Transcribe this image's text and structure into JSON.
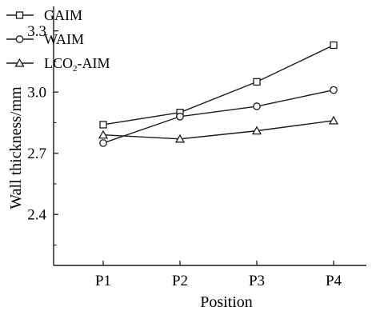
{
  "chart_data": {
    "type": "line",
    "title": "",
    "xlabel": "Position",
    "ylabel": "Wall thickness/mm",
    "categories": [
      "P1",
      "P2",
      "P3",
      "P4"
    ],
    "ylim": [
      2.15,
      3.42
    ],
    "yticks": [
      2.4,
      2.7,
      3.0,
      3.3
    ],
    "ytick_labels": [
      "2.4",
      "2.7",
      "3.0",
      "3.3"
    ],
    "grid": false,
    "legend": {
      "placement": "top-left",
      "entries": [
        {
          "label": "GAIM",
          "marker": "square"
        },
        {
          "label": "WAIM",
          "marker": "circle"
        },
        {
          "label": "LCO2-AIM",
          "marker": "triangle"
        }
      ]
    },
    "series": [
      {
        "name": "GAIM",
        "marker": "square",
        "values": [
          2.84,
          2.9,
          3.05,
          3.23
        ]
      },
      {
        "name": "WAIM",
        "marker": "circle",
        "values": [
          2.75,
          2.88,
          2.93,
          3.01
        ]
      },
      {
        "name": "LCO2-AIM",
        "marker": "triangle",
        "values": [
          2.79,
          2.77,
          2.81,
          2.86
        ]
      }
    ],
    "line_color": "#1a1a1a"
  }
}
